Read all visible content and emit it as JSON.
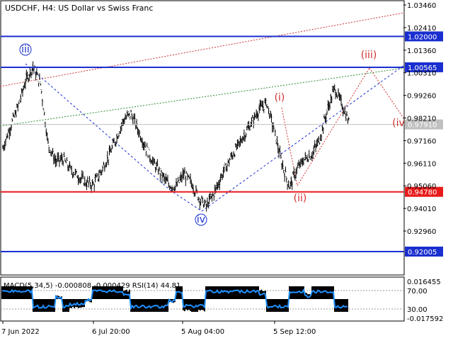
{
  "header": {
    "title": "USDCHF, H4:  US Dollar vs Swiss Franc"
  },
  "price_axis": {
    "labels": [
      "1.03460",
      "1.02410",
      "1.01360",
      "1.00310",
      "0.99260",
      "0.98210",
      "0.97160",
      "0.96110",
      "0.95060",
      "0.94010",
      "0.92960"
    ],
    "label_values": [
      1.0346,
      1.0241,
      1.0136,
      1.0031,
      0.9926,
      0.9821,
      0.9716,
      0.9611,
      0.9506,
      0.9401,
      0.9296
    ]
  },
  "levels": [
    {
      "id": "level-102000",
      "label": "1.02000",
      "value": 1.02,
      "color": "#1a2fcf"
    },
    {
      "id": "level-100565",
      "label": "1.00565",
      "value": 1.00565,
      "color": "#1a2fcf"
    },
    {
      "id": "level-094780",
      "label": "0.94780",
      "value": 0.9478,
      "color": "#e81b1b"
    },
    {
      "id": "level-092005",
      "label": "0.92005",
      "value": 0.92005,
      "color": "#1a2fcf"
    }
  ],
  "current_price": {
    "label": "0.97910",
    "value": 0.9791,
    "color": "#c0c0c0"
  },
  "wave_labels": [
    {
      "id": "wave-iii-blue",
      "text": "iii",
      "style": "circled",
      "color": "#1a2fcf"
    },
    {
      "id": "wave-iv-blue",
      "text": "iv",
      "style": "circled",
      "color": "#1a2fcf"
    },
    {
      "id": "wave-i-red",
      "text": "(i)",
      "style": "paren",
      "color": "#d03030"
    },
    {
      "id": "wave-ii-red",
      "text": "(ii)",
      "style": "paren",
      "color": "#d03030"
    },
    {
      "id": "wave-iii-red",
      "text": "(iii)",
      "style": "paren",
      "color": "#d03030"
    },
    {
      "id": "wave-iv-red",
      "text": "(iv",
      "style": "paren",
      "color": "#d03030"
    }
  ],
  "time_axis": {
    "labels": [
      "7 Jun 2022",
      "6 Jul 20:00",
      "5 Aug 04:00",
      "5 Sep 12:00"
    ]
  },
  "indicator": {
    "label": "MACD(5,34,5) -0.000808 -0.000429 RSI(14) 44.81",
    "axis_labels": [
      "0.016455",
      "70.00",
      "30.00",
      "-0.017592"
    ]
  },
  "chart_data": {
    "type": "line",
    "description_series": "USDCHF H4 close price path (approximate)",
    "series": [
      {
        "values": [
          0.968,
          0.978,
          0.987,
          0.999,
          1.006,
          0.998,
          0.97,
          0.962,
          0.963,
          0.958,
          0.955,
          0.952,
          0.951,
          0.957,
          0.964,
          0.972,
          0.981,
          0.984,
          0.976,
          0.968,
          0.961,
          0.956,
          0.951,
          0.95,
          0.956,
          0.952,
          0.945,
          0.941,
          0.947,
          0.955,
          0.962,
          0.968,
          0.974,
          0.98,
          0.986,
          0.989,
          0.976,
          0.961,
          0.95,
          0.958,
          0.963,
          0.965,
          0.972,
          0.985,
          0.996,
          0.988,
          0.979
        ]
      }
    ],
    "ylim": [
      0.9139,
      1.0378
    ],
    "x_tick_labels": [
      "7 Jun 2022",
      "6 Jul 20:00",
      "5 Aug 04:00",
      "5 Sep 12:00"
    ],
    "grid": false
  }
}
